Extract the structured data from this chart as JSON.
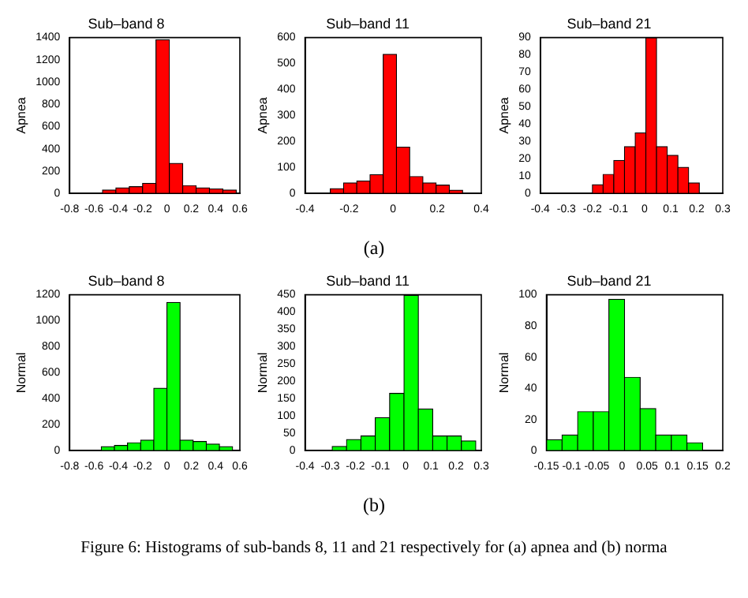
{
  "chart_data": [
    {
      "type": "histogram",
      "title": "Sub–band 8",
      "ylabel": "Apnea",
      "color": "#ff0000",
      "bins": [
        -0.53,
        -0.42,
        -0.31,
        -0.2,
        -0.09,
        0.02,
        0.13,
        0.24,
        0.35,
        0.46,
        0.57
      ],
      "values": [
        30,
        50,
        60,
        90,
        1380,
        270,
        70,
        50,
        40,
        30
      ],
      "xlim": [
        -0.8,
        0.6
      ],
      "xticks": [
        -0.8,
        -0.6,
        -0.4,
        -0.2,
        0,
        0.2,
        0.4,
        0.6
      ],
      "ylim": [
        0,
        1400
      ],
      "yticks": [
        0,
        200,
        400,
        600,
        800,
        1000,
        1200,
        1400
      ],
      "grid": false
    },
    {
      "type": "histogram",
      "title": "Sub–band 11",
      "ylabel": "Apnea",
      "color": "#ff0000",
      "bins": [
        -0.285,
        -0.225,
        -0.165,
        -0.105,
        -0.045,
        0.015,
        0.075,
        0.135,
        0.195,
        0.255,
        0.315
      ],
      "values": [
        18,
        40,
        48,
        72,
        535,
        178,
        65,
        40,
        32,
        5
      ],
      "xlim": [
        -0.4,
        0.4
      ],
      "xticks": [
        -0.4,
        -0.2,
        0,
        0.2,
        0.4
      ],
      "ylim": [
        0,
        600
      ],
      "yticks": [
        0,
        100,
        200,
        300,
        400,
        500,
        600
      ],
      "grid": false,
      "annotations": [
        "(a)"
      ]
    },
    {
      "type": "histogram",
      "title": "Sub–band 21",
      "ylabel": "Apnea",
      "color": "#ff0000",
      "bins": [
        -0.2,
        -0.159,
        -0.118,
        -0.077,
        -0.036,
        0.005,
        0.046,
        0.087,
        0.128,
        0.169,
        0.21
      ],
      "values": [
        5,
        11,
        19,
        27,
        35,
        90,
        27,
        22,
        15,
        6
      ],
      "xlim": [
        -0.4,
        0.3
      ],
      "xticks": [
        -0.4,
        -0.3,
        -0.2,
        -0.1,
        0,
        0.1,
        0.2,
        0.3
      ],
      "ylim": [
        0,
        90
      ],
      "yticks": [
        0,
        10,
        20,
        30,
        40,
        50,
        60,
        70,
        80,
        90
      ],
      "grid": false
    },
    {
      "type": "histogram",
      "title": "Sub–band 8",
      "ylabel": "Normal",
      "color": "#00ff00",
      "bins": [
        -0.54,
        -0.432,
        -0.324,
        -0.216,
        -0.108,
        0,
        0.108,
        0.216,
        0.324,
        0.432,
        0.54
      ],
      "values": [
        30,
        40,
        60,
        80,
        480,
        1140,
        80,
        70,
        50,
        30
      ],
      "xlim": [
        -0.8,
        0.6
      ],
      "xticks": [
        -0.8,
        -0.6,
        -0.4,
        -0.2,
        0,
        0.2,
        0.4,
        0.6
      ],
      "ylim": [
        0,
        1200
      ],
      "yticks": [
        0,
        200,
        400,
        600,
        800,
        1000,
        1200
      ],
      "grid": false
    },
    {
      "type": "histogram",
      "title": "Sub–band 11",
      "ylabel": "Normal",
      "color": "#00ff00",
      "bins": [
        -0.292,
        -0.235,
        -0.178,
        -0.121,
        -0.064,
        -0.007,
        0.05,
        0.107,
        0.164,
        0.221,
        0.278
      ],
      "values": [
        12,
        32,
        42,
        95,
        165,
        448,
        120,
        42,
        42,
        28
      ],
      "xlim": [
        -0.4,
        0.3
      ],
      "xticks": [
        -0.4,
        -0.3,
        -0.2,
        -0.1,
        0,
        0.1,
        0.2,
        0.3
      ],
      "ylim": [
        0,
        450
      ],
      "yticks": [
        0,
        50,
        100,
        150,
        200,
        250,
        300,
        350,
        400,
        450
      ],
      "grid": false,
      "annotations": [
        "(b)",
        "Figure 6: Histograms of sub-bands 8, 11 and 21 respectively for (a) apnea and (b) norma"
      ]
    },
    {
      "type": "histogram",
      "title": "Sub–band 21",
      "ylabel": "Normal",
      "color": "#00ff00",
      "bins": [
        -0.15,
        -0.119,
        -0.088,
        -0.057,
        -0.026,
        0.005,
        0.036,
        0.067,
        0.098,
        0.129,
        0.16
      ],
      "values": [
        7,
        10,
        25,
        25,
        97,
        47,
        27,
        10,
        10,
        5
      ],
      "xlim": [
        -0.15,
        0.2
      ],
      "xticks": [
        -0.15,
        -0.1,
        -0.05,
        0,
        0.05,
        0.1,
        0.15,
        0.2
      ],
      "ylim": [
        0,
        100
      ],
      "yticks": [
        0,
        20,
        40,
        60,
        80,
        100
      ],
      "grid": false
    }
  ]
}
